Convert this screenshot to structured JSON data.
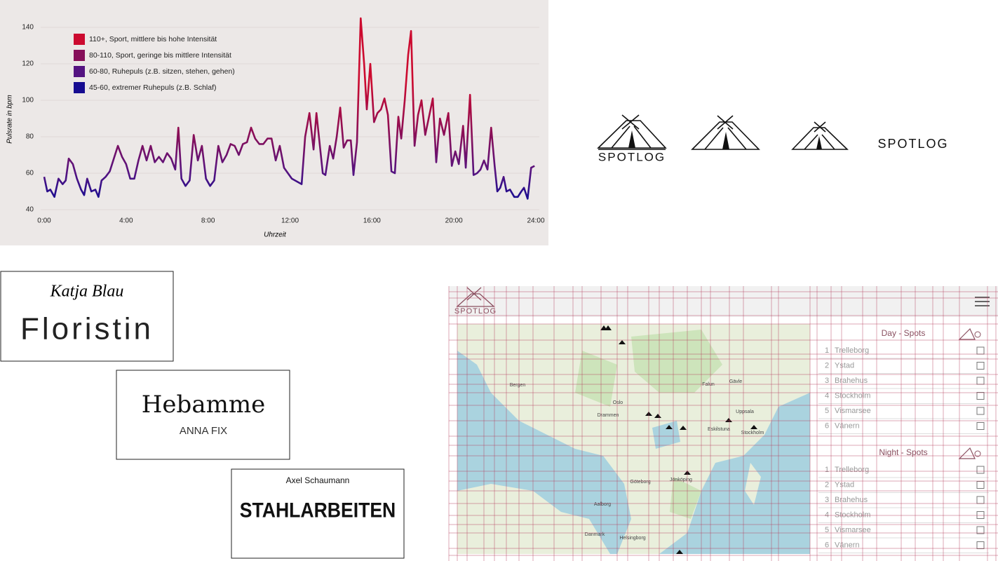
{
  "chart_data": {
    "type": "line",
    "xlabel": "Uhrzeit",
    "ylabel": "Pulsrate in bpm",
    "xlim": [
      0,
      24
    ],
    "ylim": [
      40,
      145
    ],
    "xticks": [
      {
        "value": 0,
        "label": "0:00"
      },
      {
        "value": 4,
        "label": "4:00"
      },
      {
        "value": 8,
        "label": "8:00"
      },
      {
        "value": 12,
        "label": "12:00"
      },
      {
        "value": 16,
        "label": "16:00"
      },
      {
        "value": 20,
        "label": "20:00"
      },
      {
        "value": 24,
        "label": "24:00"
      }
    ],
    "yticks": [
      40,
      60,
      80,
      100,
      120,
      140
    ],
    "grid": true,
    "zones": [
      {
        "label": "110+, Sport, mittlere bis hohe Intensität",
        "color": "#cc0a2f",
        "min": 110
      },
      {
        "label": "80-110, Sport, geringe bis mittlere Intensität",
        "color": "#860f5a",
        "min": 80
      },
      {
        "label": "60-80, Ruhepuls (z.B. sitzen, stehen, gehen)",
        "color": "#541381",
        "min": 60
      },
      {
        "label": "45-60, extremer Ruhepuls (z.B. Schlaf)",
        "color": "#160c91",
        "min": 45
      }
    ],
    "x": [
      0.0,
      0.15,
      0.3,
      0.5,
      0.7,
      0.9,
      1.05,
      1.2,
      1.4,
      1.6,
      1.8,
      1.95,
      2.1,
      2.3,
      2.5,
      2.65,
      2.8,
      3.0,
      3.2,
      3.4,
      3.6,
      3.8,
      4.0,
      4.2,
      4.4,
      4.6,
      4.8,
      5.0,
      5.2,
      5.4,
      5.6,
      5.8,
      6.0,
      6.2,
      6.4,
      6.55,
      6.7,
      6.9,
      7.1,
      7.3,
      7.5,
      7.7,
      7.9,
      8.1,
      8.3,
      8.5,
      8.7,
      8.9,
      9.1,
      9.3,
      9.5,
      9.7,
      9.9,
      10.1,
      10.3,
      10.5,
      10.7,
      10.9,
      11.1,
      11.3,
      11.5,
      11.71,
      12.09,
      12.57,
      12.74,
      12.95,
      13.15,
      13.29,
      13.6,
      13.73,
      13.94,
      14.11,
      14.28,
      14.45,
      14.62,
      14.79,
      14.97,
      15.1,
      15.27,
      15.45,
      15.62,
      15.75,
      15.92,
      16.1,
      16.27,
      16.44,
      16.61,
      16.78,
      16.95,
      17.12,
      17.29,
      17.43,
      17.6,
      17.77,
      17.91,
      18.08,
      18.25,
      18.42,
      18.6,
      18.77,
      18.97,
      19.14,
      19.32,
      19.52,
      19.73,
      19.9,
      20.07,
      20.24,
      20.45,
      20.58,
      20.79,
      20.96,
      21.13,
      21.3,
      21.47,
      21.64,
      21.82,
      21.99,
      22.12,
      22.26,
      22.43,
      22.57,
      22.74,
      22.95,
      23.12,
      23.29,
      23.42,
      23.6,
      23.77,
      23.94
    ],
    "values": [
      58,
      50,
      51,
      47,
      57,
      54,
      56,
      68,
      65,
      57,
      51,
      48,
      57,
      50,
      51,
      47,
      56,
      58,
      61,
      68,
      75,
      69,
      65,
      57,
      57,
      67,
      75,
      67,
      75,
      66,
      69,
      66,
      71,
      68,
      62,
      85,
      57,
      53,
      56,
      81,
      67,
      75,
      57,
      53,
      56,
      75,
      66,
      70,
      76,
      75,
      70,
      76,
      77,
      85,
      79,
      76,
      76,
      79,
      79,
      67,
      75,
      63,
      57,
      54,
      80,
      93,
      73,
      93,
      60,
      59,
      75,
      68,
      80,
      96,
      74,
      78,
      78,
      59,
      77,
      145,
      120,
      95,
      120,
      88,
      93,
      95,
      101,
      92,
      61,
      60,
      91,
      79,
      100,
      125,
      138,
      75,
      92,
      100,
      81,
      90,
      101,
      66,
      90,
      81,
      93,
      64,
      72,
      65,
      86,
      63,
      103,
      59,
      60,
      62,
      67,
      62,
      85,
      64,
      50,
      52,
      58,
      50,
      51,
      47,
      47,
      50,
      52,
      46,
      63,
      64
    ]
  },
  "logos": {
    "text": "SPOTLOG"
  },
  "cards": [
    {
      "script": "Katja Blau",
      "title": "Floristin"
    },
    {
      "title": "Hebamme",
      "name": "ANNA FIX"
    },
    {
      "name": "Axel Schaumann",
      "title": "STAHLARBEITEN"
    }
  ],
  "ui": {
    "logo": "SPOTLOG",
    "map_labels": [
      "Bergen",
      "Oslo",
      "Drammen",
      "Göteborg",
      "Jönköping",
      "Stockholm",
      "Uppsala",
      "Gävle",
      "Falun",
      "Aalborg",
      "Helsingborg",
      "Danmark",
      "Eskilstuna"
    ],
    "day_spots": {
      "heading": "Day - Spots",
      "items": [
        {
          "no": 1,
          "name": "Trelleborg"
        },
        {
          "no": 2,
          "name": "Ystad"
        },
        {
          "no": 3,
          "name": "Brahehus"
        },
        {
          "no": 4,
          "name": "Stockholm"
        },
        {
          "no": 5,
          "name": "Vismarsee"
        },
        {
          "no": 6,
          "name": "Vänern"
        }
      ]
    },
    "night_spots": {
      "heading": "Night - Spots",
      "items": [
        {
          "no": 1,
          "name": "Trelleborg"
        },
        {
          "no": 2,
          "name": "Ystad"
        },
        {
          "no": 3,
          "name": "Brahehus"
        },
        {
          "no": 4,
          "name": "Stockholm"
        },
        {
          "no": 5,
          "name": "Vismarsee"
        },
        {
          "no": 6,
          "name": "Vänern"
        }
      ]
    }
  }
}
